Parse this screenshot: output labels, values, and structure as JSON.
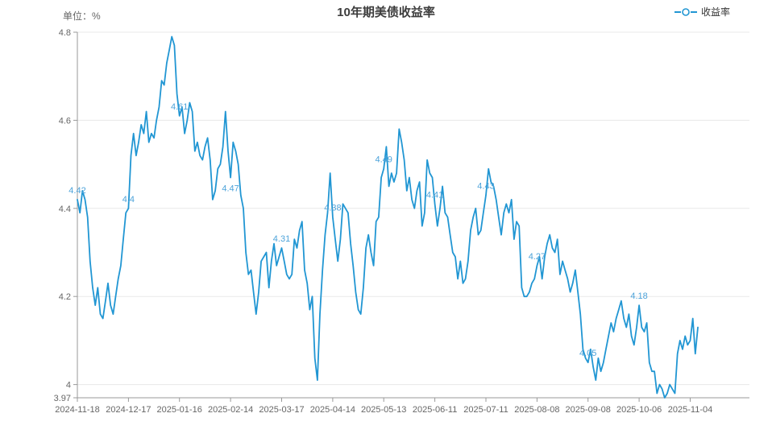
{
  "title": "10年期美债收益率",
  "unit_label": "单位：%",
  "legend": {
    "name": "收益率"
  },
  "colors": {
    "line": "#2196d3",
    "point_label": "#4da3da",
    "grid": "#e8e8e8",
    "axis_line": "#999999",
    "axis_text": "#666666",
    "title_text": "#3c3c3c",
    "background": "#ffffff"
  },
  "chart_data": {
    "type": "line",
    "title": "10年期美债收益率",
    "ylabel": "单位：%",
    "legend": [
      "收益率"
    ],
    "legend_position": "top-right",
    "grid": "horizontal-only",
    "ylim": [
      3.97,
      4.8
    ],
    "y_ticks": [
      {
        "value": 4.8,
        "label": "4.8",
        "grid": true
      },
      {
        "value": 4.6,
        "label": "4.6",
        "grid": true
      },
      {
        "value": 4.4,
        "label": "4.4",
        "grid": true
      },
      {
        "value": 4.2,
        "label": "4.2",
        "grid": true
      },
      {
        "value": 4.0,
        "label": "4",
        "grid": true
      },
      {
        "value": 3.97,
        "label": "3.97",
        "grid": false
      }
    ],
    "x_ticks": [
      {
        "index": 0,
        "label": "2024-11-18"
      },
      {
        "index": 20,
        "label": "2024-12-17"
      },
      {
        "index": 40,
        "label": "2025-01-16"
      },
      {
        "index": 60,
        "label": "2025-02-14"
      },
      {
        "index": 80,
        "label": "2025-03-17"
      },
      {
        "index": 100,
        "label": "2025-04-14"
      },
      {
        "index": 120,
        "label": "2025-05-13"
      },
      {
        "index": 140,
        "label": "2025-06-11"
      },
      {
        "index": 160,
        "label": "2025-07-11"
      },
      {
        "index": 180,
        "label": "2025-08-08"
      },
      {
        "index": 200,
        "label": "2025-09-08"
      },
      {
        "index": 220,
        "label": "2025-10-06"
      },
      {
        "index": 240,
        "label": "2025-11-04"
      }
    ],
    "point_labels": [
      {
        "index": 0,
        "text": "4.42"
      },
      {
        "index": 20,
        "text": "4.4"
      },
      {
        "index": 40,
        "text": "4.61"
      },
      {
        "index": 60,
        "text": "4.47",
        "pos": "below"
      },
      {
        "index": 80,
        "text": "4.31"
      },
      {
        "index": 100,
        "text": "4.38"
      },
      {
        "index": 120,
        "text": "4.49"
      },
      {
        "index": 140,
        "text": "4.41"
      },
      {
        "index": 160,
        "text": "4.43"
      },
      {
        "index": 180,
        "text": "4.27"
      },
      {
        "index": 200,
        "text": "4.05"
      },
      {
        "index": 220,
        "text": "4.18"
      }
    ],
    "series": [
      {
        "name": "收益率",
        "values": [
          4.42,
          4.39,
          4.44,
          4.42,
          4.38,
          4.28,
          4.22,
          4.18,
          4.22,
          4.16,
          4.15,
          4.19,
          4.23,
          4.18,
          4.16,
          4.2,
          4.24,
          4.27,
          4.33,
          4.39,
          4.4,
          4.52,
          4.57,
          4.52,
          4.55,
          4.59,
          4.57,
          4.62,
          4.55,
          4.57,
          4.56,
          4.6,
          4.63,
          4.69,
          4.68,
          4.73,
          4.76,
          4.79,
          4.77,
          4.66,
          4.61,
          4.63,
          4.57,
          4.6,
          4.64,
          4.62,
          4.53,
          4.55,
          4.52,
          4.51,
          4.54,
          4.56,
          4.51,
          4.42,
          4.44,
          4.49,
          4.5,
          4.54,
          4.62,
          4.53,
          4.47,
          4.55,
          4.53,
          4.5,
          4.43,
          4.4,
          4.3,
          4.25,
          4.26,
          4.21,
          4.16,
          4.21,
          4.28,
          4.29,
          4.3,
          4.22,
          4.28,
          4.32,
          4.27,
          4.29,
          4.31,
          4.28,
          4.25,
          4.24,
          4.25,
          4.33,
          4.31,
          4.35,
          4.37,
          4.26,
          4.23,
          4.17,
          4.2,
          4.06,
          4.01,
          4.16,
          4.26,
          4.34,
          4.39,
          4.48,
          4.38,
          4.33,
          4.28,
          4.33,
          4.41,
          4.4,
          4.39,
          4.32,
          4.27,
          4.21,
          4.17,
          4.16,
          4.22,
          4.31,
          4.34,
          4.3,
          4.27,
          4.37,
          4.38,
          4.47,
          4.49,
          4.54,
          4.45,
          4.48,
          4.46,
          4.48,
          4.58,
          4.55,
          4.51,
          4.44,
          4.47,
          4.42,
          4.4,
          4.44,
          4.46,
          4.36,
          4.39,
          4.51,
          4.48,
          4.47,
          4.41,
          4.36,
          4.4,
          4.45,
          4.39,
          4.38,
          4.34,
          4.3,
          4.29,
          4.24,
          4.28,
          4.23,
          4.24,
          4.28,
          4.35,
          4.38,
          4.4,
          4.34,
          4.35,
          4.39,
          4.43,
          4.49,
          4.46,
          4.45,
          4.42,
          4.38,
          4.34,
          4.39,
          4.41,
          4.39,
          4.42,
          4.33,
          4.37,
          4.36,
          4.22,
          4.2,
          4.2,
          4.21,
          4.23,
          4.24,
          4.27,
          4.29,
          4.24,
          4.29,
          4.32,
          4.34,
          4.31,
          4.3,
          4.33,
          4.25,
          4.28,
          4.26,
          4.24,
          4.21,
          4.23,
          4.26,
          4.21,
          4.16,
          4.08,
          4.06,
          4.05,
          4.08,
          4.04,
          4.01,
          4.06,
          4.03,
          4.05,
          4.08,
          4.11,
          4.14,
          4.12,
          4.15,
          4.17,
          4.19,
          4.15,
          4.13,
          4.16,
          4.11,
          4.09,
          4.13,
          4.18,
          4.13,
          4.12,
          4.14,
          4.05,
          4.03,
          4.03,
          3.98,
          4.0,
          3.99,
          3.97,
          3.98,
          4.0,
          3.99,
          3.98,
          4.07,
          4.1,
          4.08,
          4.11,
          4.09,
          4.1,
          4.15,
          4.07,
          4.13
        ]
      }
    ]
  }
}
